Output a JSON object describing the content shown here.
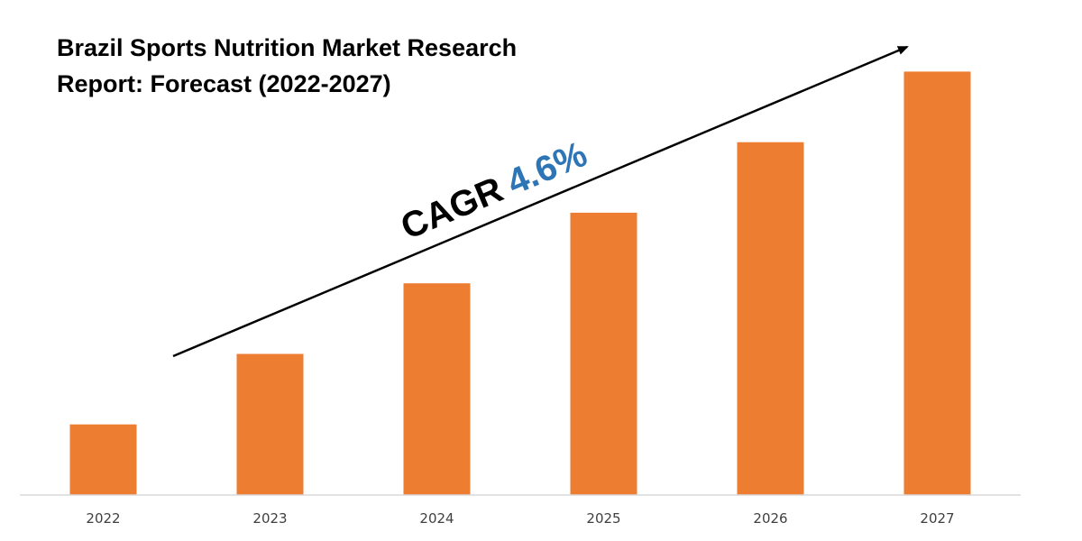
{
  "chart_data": {
    "type": "bar",
    "title_lines": [
      "Brazil Sports Nutrition Market Research",
      "Report: Forecast (2022-2027)"
    ],
    "categories": [
      "2022",
      "2023",
      "2024",
      "2025",
      "2026",
      "2027"
    ],
    "values": [
      1,
      2,
      3,
      4,
      5,
      6
    ],
    "ylim": [
      0,
      6.12
    ],
    "xlabel": "",
    "ylabel": "",
    "y_axis_visible": false,
    "grid": false,
    "legend": "none",
    "annotation": {
      "prefix": "CAGR",
      "value": "4.6%",
      "arrow": "upward trend arrow from 2022-2023 to 2027"
    },
    "colors": {
      "bar": "#ED7D31",
      "cagr_value": "#2E75B6",
      "axis": "#D9D9D9",
      "text": "#000000"
    }
  }
}
